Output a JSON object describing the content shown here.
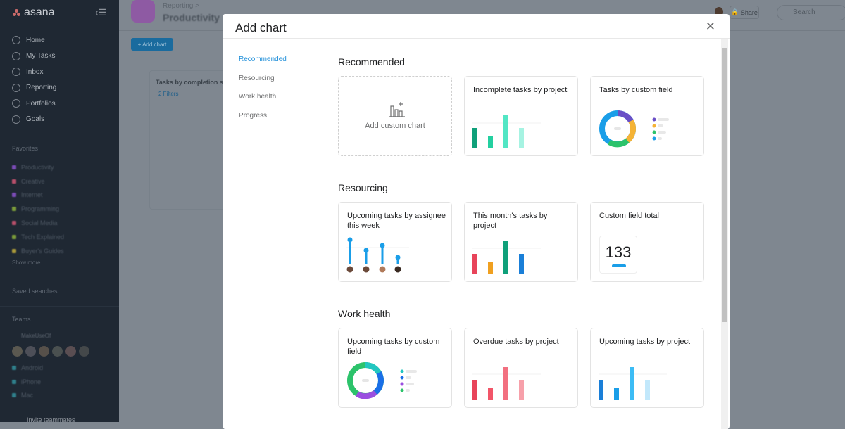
{
  "sidebar": {
    "logo": "asana",
    "nav": [
      "Home",
      "My Tasks",
      "Inbox",
      "Reporting",
      "Portfolios",
      "Goals"
    ],
    "favorites_label": "Favorites",
    "favorites": [
      {
        "label": "Productivity",
        "color": "#7a4bb5"
      },
      {
        "label": "Creative",
        "color": "#b64f6a"
      },
      {
        "label": "Internet",
        "color": "#7a4bb5"
      },
      {
        "label": "Programming",
        "color": "#7a9a3a"
      },
      {
        "label": "Social Media",
        "color": "#b64f6a"
      },
      {
        "label": "Tech Explained",
        "color": "#7a9a3a"
      },
      {
        "label": "Buyer's Guides",
        "color": "#a8983a"
      }
    ],
    "show_more": "Show more",
    "saved_searches": "Saved searches",
    "teams": "Teams",
    "team_name": "MakeUseOf",
    "team_projects": [
      "Android",
      "iPhone",
      "Mac"
    ],
    "invite": "Invite teammates"
  },
  "background": {
    "breadcrumb": "Reporting >",
    "title": "Productivity",
    "add_chart": "+ Add chart",
    "card_title": "Tasks by completion s",
    "filters": "2 Filters",
    "share": "Share",
    "search_placeholder": "Search"
  },
  "modal": {
    "title": "Add chart",
    "nav": [
      "Recommended",
      "Resourcing",
      "Work health",
      "Progress"
    ],
    "sections": [
      {
        "title": "Recommended",
        "cards": [
          "Add custom chart",
          "Incomplete tasks by project",
          "Tasks by custom field"
        ]
      },
      {
        "title": "Resourcing",
        "cards": [
          "Upcoming tasks by assignee this week",
          "This month's tasks by project",
          "Custom field total"
        ]
      },
      {
        "title": "Work health",
        "cards": [
          "Upcoming tasks by custom field",
          "Overdue tasks by project",
          "Upcoming tasks by project"
        ]
      }
    ],
    "custom_field_total": "133"
  },
  "colors": {
    "accent": "#1a8cd8",
    "green": "#17b890",
    "red": "#e8445a",
    "blue": "#1a9ee8"
  }
}
